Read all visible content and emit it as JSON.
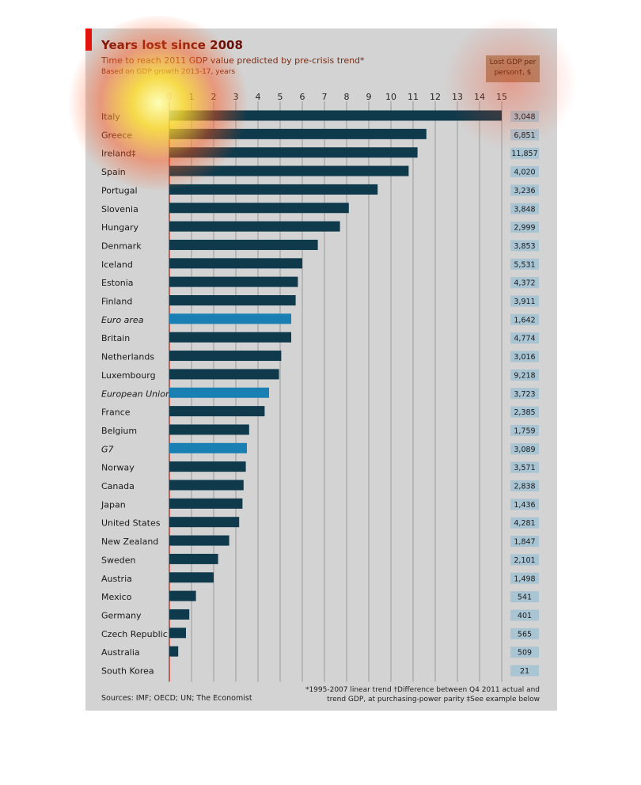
{
  "title": "Years lost since 2008",
  "subtitle": "Time to reach 2011 GDP value predicted by pre-crisis trend*",
  "subtitle2": "Based on GDP growth 2013-17, years",
  "box_header": "Lost GDP per person†, $",
  "sources": "Sources: IMF; OECD; UN; The Economist",
  "footnote": "*1995-2007 linear trend   †Difference between Q4 2011 actual and trend GDP, at purchasing-power parity  ‡See example below",
  "colors": {
    "bar_country": "#0e3a4c",
    "bar_aggregate": "#1a7fb3",
    "value_box": "#a9c4d2",
    "baseline": "#c0392b",
    "grid": "#9a9a9a"
  },
  "chart_data": {
    "type": "bar",
    "orientation": "horizontal",
    "title": "Years lost since 2008",
    "xlim": [
      0,
      15
    ],
    "xticks": [
      0,
      1,
      2,
      3,
      4,
      5,
      6,
      7,
      8,
      9,
      10,
      11,
      12,
      13,
      14,
      15
    ],
    "categories": [
      "Italy",
      "Greece",
      "Ireland‡",
      "Spain",
      "Portugal",
      "Slovenia",
      "Hungary",
      "Denmark",
      "Iceland",
      "Estonia",
      "Finland",
      "Euro area",
      "Britain",
      "Netherlands",
      "Luxembourg",
      "European Union",
      "France",
      "Belgium",
      "G7",
      "Norway",
      "Canada",
      "Japan",
      "United States",
      "New Zealand",
      "Sweden",
      "Austria",
      "Mexico",
      "Germany",
      "Czech Republic",
      "Australia",
      "South Korea"
    ],
    "values": [
      15,
      11.6,
      11.2,
      10.8,
      9.4,
      8.1,
      7.7,
      6.7,
      6.0,
      5.8,
      5.7,
      5.5,
      5.5,
      5.05,
      4.95,
      4.5,
      4.3,
      3.6,
      3.5,
      3.45,
      3.35,
      3.3,
      3.15,
      2.7,
      2.2,
      2.0,
      1.2,
      0.9,
      0.75,
      0.4,
      0
    ],
    "aggregates": [
      "Euro area",
      "European Union",
      "G7"
    ],
    "lost_gdp_per_person": [
      "3,048",
      "6,851",
      "11,857",
      "4,020",
      "3,236",
      "3,848",
      "2,999",
      "3,853",
      "5,531",
      "4,372",
      "3,911",
      "1,642",
      "4,774",
      "3,016",
      "9,218",
      "3,723",
      "2,385",
      "1,759",
      "3,089",
      "3,571",
      "2,838",
      "1,436",
      "4,281",
      "1,847",
      "2,101",
      "1,498",
      "541",
      "401",
      "565",
      "509",
      "21"
    ],
    "grid": true
  }
}
